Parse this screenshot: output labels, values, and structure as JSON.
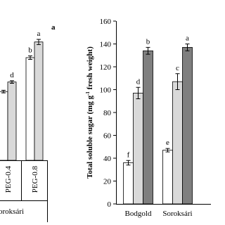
{
  "chart_data": [
    {
      "type": "bar",
      "panel_label": "a",
      "categories": [
        "PEG-0.4",
        "PEG-0.8"
      ],
      "group_label": "oroksári",
      "ylim": [
        0,
        160
      ],
      "series": [
        {
          "color": "#ffffff",
          "values": [
            79,
            118
          ],
          "errors": [
            1.5,
            2
          ],
          "letters": [
            null,
            "b"
          ]
        },
        {
          "color": "#d9d9d9",
          "values": [
            90,
            136
          ],
          "errors": [
            1.5,
            3
          ],
          "letters": [
            "d",
            "a"
          ]
        }
      ]
    },
    {
      "type": "bar",
      "ylabel": "Total soluble sugar (mg g",
      "ylabel_sup": "-1",
      "ylabel_end": " fresh weight)",
      "categories": [
        "Bodgold",
        "Soroksári"
      ],
      "ylim": [
        0,
        160
      ],
      "yticks": [
        0,
        20,
        40,
        60,
        80,
        100,
        120,
        140,
        160
      ],
      "series": [
        {
          "color": "#ffffff",
          "values": [
            36,
            47
          ],
          "errors": [
            2,
            1.5
          ],
          "letters": [
            "f",
            "e"
          ]
        },
        {
          "color": "#d9d9d9",
          "values": [
            97,
            107
          ],
          "errors": [
            5,
            7
          ],
          "letters": [
            "d",
            "c"
          ]
        },
        {
          "color": "#7f7f7f",
          "values": [
            134,
            137
          ],
          "errors": [
            3,
            3
          ],
          "letters": [
            "b",
            "a"
          ]
        }
      ]
    }
  ]
}
